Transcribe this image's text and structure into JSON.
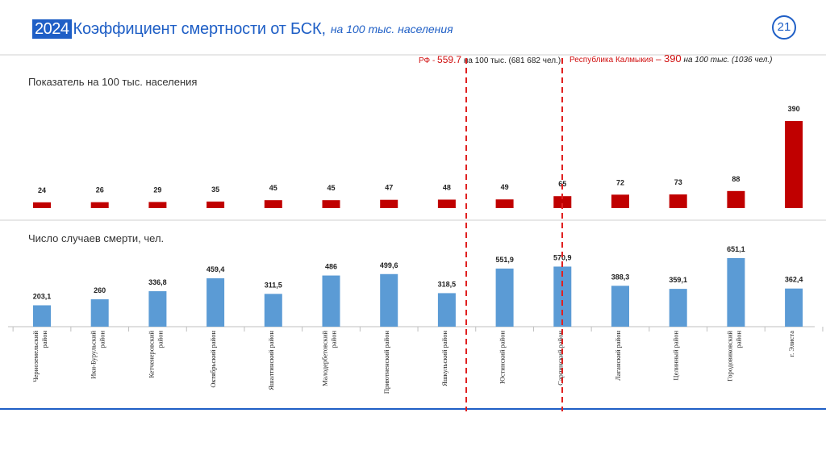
{
  "header": {
    "year": "2024",
    "title": "Коэффициент смертности от БСК,",
    "subtitle": "на 100 тыс. населения",
    "page_number": "21"
  },
  "annotations": {
    "rf_label_a": "РФ - ",
    "rf_value": "559.7",
    "rf_label_b": " на 100 тыс. (681 682 чел.)",
    "kalm_label": "Республика Калмыкия",
    "kalm_dash": " – ",
    "kalm_value": "390",
    "kalm_tail": " на 100 тыс. (1036 чел.)"
  },
  "colors": {
    "accent": "#1f5fc6",
    "red_bar": "#c00000",
    "blue_bar": "#5b9bd5",
    "ref_line": "#e02020"
  },
  "chart_data": [
    {
      "type": "bar",
      "title": "Показатель на 100 тыс. населения",
      "categories": [
        "Черноземельский район",
        "Ики-Бурульский район",
        "Кетченеровский район",
        "Октябрьский район",
        "Яшалтинский район",
        "Малодербетовский район",
        "Приютненский район",
        "Яшкульский район",
        "Юстинский район",
        "Сарпинский район",
        "Лаганский район",
        "Целинный район",
        "Городовиковский район",
        "г. Элиста"
      ],
      "values": [
        24,
        26,
        29,
        35,
        45,
        45,
        47,
        48,
        49,
        65,
        72,
        73,
        88,
        390
      ],
      "labels": [
        "24",
        "26",
        "29",
        "35",
        "45",
        "45",
        "47",
        "48",
        "49",
        "65",
        "72",
        "73",
        "88",
        "390"
      ],
      "ylim": [
        0,
        390
      ]
    },
    {
      "type": "bar",
      "title": "Число случаев смерти, чел.",
      "categories": [
        "Черноземельский район",
        "Ики-Бурульский район",
        "Кетченеровский район",
        "Октябрьский район",
        "Яшалтинский район",
        "Малодербетовский район",
        "Приютненский район",
        "Яшкульский район",
        "Юстинский район",
        "Сарпинский район",
        "Лаганский район",
        "Целинный район",
        "Городовиковский район",
        "г. Элиста"
      ],
      "values": [
        203.1,
        260,
        336.8,
        459.4,
        311.5,
        486,
        499.6,
        318.5,
        551.9,
        570.9,
        388.3,
        359.1,
        651.1,
        362.4
      ],
      "labels": [
        "203,1",
        "260",
        "336,8",
        "459,4",
        "311,5",
        "486",
        "499,6",
        "318,5",
        "551,9",
        "570,9",
        "388,3",
        "359,1",
        "651,1",
        "362,4"
      ],
      "axis_labels": [
        "Черноземельский\nрайон",
        "Ики-Бурульский\nрайон",
        "Кетченеровский\nрайон",
        "Октябрьский район",
        "Яшалтинский район",
        "Малодербетовский\nрайон",
        "Приютненский район",
        "Яшкульский район",
        "Юстинский район",
        "Сарпинский район",
        "Лаганский район",
        "Целинный  район",
        "Городовиковский\nрайон",
        "г. Элиста"
      ],
      "ylim": [
        0,
        651.1
      ]
    }
  ]
}
